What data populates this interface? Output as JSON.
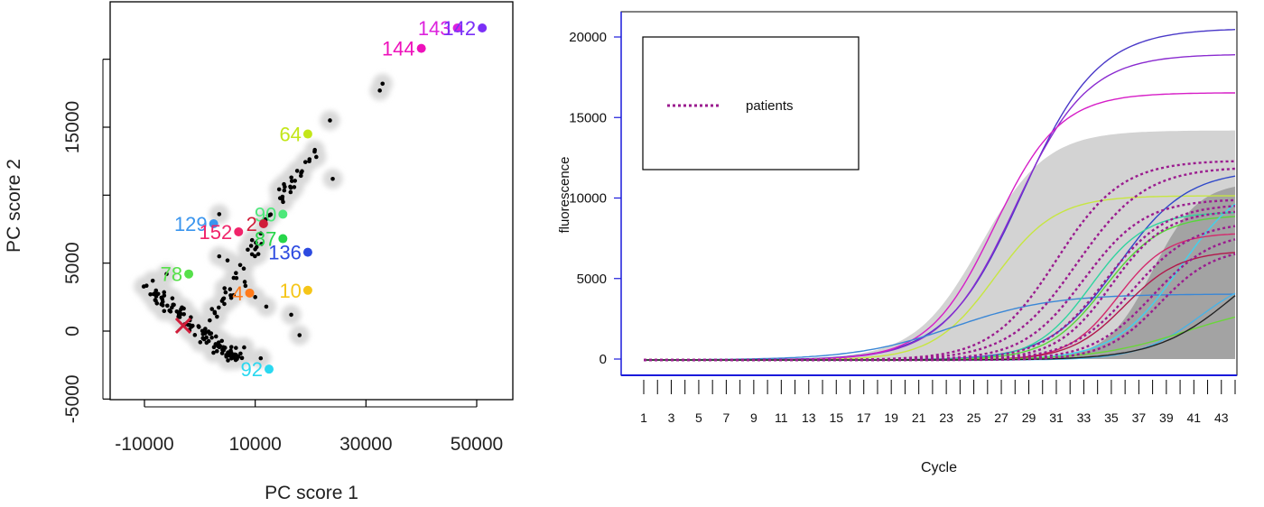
{
  "chart_data": [
    {
      "type": "scatter",
      "title": "",
      "xlabel": "PC score 1",
      "ylabel": "PC score 2",
      "xlim": [
        -16000,
        56000
      ],
      "ylim": [
        -5200,
        23500
      ],
      "xticks": [
        -10000,
        10000,
        30000,
        50000
      ],
      "xtick_labels": [
        "-10000",
        "10000",
        "30000",
        "50000"
      ],
      "yticks": [
        -5000,
        0,
        5000,
        10000,
        15000,
        20000
      ],
      "ytick_labels": [
        "-5000",
        "0",
        "5000",
        "",
        "15000",
        ""
      ],
      "grid": false,
      "density_region_color": "#d9d9d9",
      "point_color": "#000000",
      "labeled_points": [
        {
          "label": "143",
          "x": 46500,
          "y": 22300,
          "color": "#dd22dd"
        },
        {
          "label": "142",
          "x": 51000,
          "y": 22300,
          "color": "#7b2ff7"
        },
        {
          "label": "144",
          "x": 40000,
          "y": 20800,
          "color": "#ee11bb"
        },
        {
          "label": "64",
          "x": 19500,
          "y": 14500,
          "color": "#c3e619"
        },
        {
          "label": "90",
          "x": 15000,
          "y": 8600,
          "color": "#4de87a"
        },
        {
          "label": "2",
          "x": 11500,
          "y": 7900,
          "color": "#d01d3a"
        },
        {
          "label": "129",
          "x": 2500,
          "y": 7900,
          "color": "#3a95ee"
        },
        {
          "label": "152",
          "x": 7000,
          "y": 7300,
          "color": "#f0246a"
        },
        {
          "label": "87",
          "x": 15000,
          "y": 6800,
          "color": "#27d64a"
        },
        {
          "label": "136",
          "x": 19500,
          "y": 5800,
          "color": "#2c4ae0"
        },
        {
          "label": "78",
          "x": -2000,
          "y": 4200,
          "color": "#56e04a"
        },
        {
          "label": "4",
          "x": 9000,
          "y": 2800,
          "color": "#ff7a1a"
        },
        {
          "label": "10",
          "x": 19500,
          "y": 3000,
          "color": "#f5c518"
        },
        {
          "label": "92",
          "x": 12500,
          "y": -2800,
          "color": "#2ad8f0"
        }
      ],
      "center_marker": {
        "x": -3000,
        "y": 400,
        "color": "#d01d3a"
      }
    },
    {
      "type": "line",
      "title": "",
      "xlabel": "Cycle",
      "ylabel": "fluorescence",
      "xlim": [
        1,
        44
      ],
      "ylim": [
        -800,
        21000
      ],
      "xticks": [
        1,
        3,
        5,
        7,
        9,
        11,
        13,
        15,
        17,
        19,
        21,
        23,
        25,
        27,
        29,
        31,
        33,
        35,
        37,
        39,
        41,
        43
      ],
      "yticks": [
        0,
        5000,
        10000,
        15000,
        20000
      ],
      "ytick_labels": [
        "0",
        "5000",
        "10000",
        "15000",
        "20000"
      ],
      "grid": false,
      "legend": {
        "position": "top-left",
        "entries": [
          {
            "label": "patients",
            "color": "#9b1c8f",
            "style": "dotted"
          }
        ]
      },
      "envelope_colors": {
        "outer": "#d3d3d3",
        "inner": "#a3a3a3"
      },
      "reference_series": [
        {
          "max": 20600,
          "midpoint": 28.5,
          "slope": 0.36,
          "color": "#4a39c8"
        },
        {
          "max": 19000,
          "midpoint": 28.0,
          "slope": 0.38,
          "color": "#8a2bd0"
        },
        {
          "max": 16600,
          "midpoint": 26.5,
          "slope": 0.42,
          "color": "#d61ec7"
        },
        {
          "max": 10200,
          "midpoint": 26.5,
          "slope": 0.45,
          "color": "#c7e641"
        },
        {
          "max": 4100,
          "midpoint": 23.5,
          "slope": 0.28,
          "color": "#3a87d6"
        },
        {
          "max": 11800,
          "midpoint": 35.5,
          "slope": 0.4,
          "color": "#2f48c9"
        },
        {
          "max": 9200,
          "midpoint": 33.5,
          "slope": 0.5,
          "color": "#2fd4a0"
        },
        {
          "max": 9000,
          "midpoint": 34.5,
          "slope": 0.48,
          "color": "#57d63a"
        },
        {
          "max": 11500,
          "midpoint": 40.0,
          "slope": 0.42,
          "color": "#3ed2ee"
        },
        {
          "max": 7900,
          "midpoint": 35.5,
          "slope": 0.55,
          "color": "#d42a6d"
        },
        {
          "max": 6800,
          "midpoint": 36.0,
          "slope": 0.5,
          "color": "#b2174b"
        },
        {
          "max": 5500,
          "midpoint": 41.5,
          "slope": 0.45,
          "color": "#4ab3e6"
        },
        {
          "max": 3600,
          "midpoint": 40.5,
          "slope": 0.3,
          "color": "#6ad63a"
        },
        {
          "max": 8000,
          "midpoint": 44.0,
          "slope": 0.35,
          "color": "#222222"
        }
      ],
      "patient_series": [
        {
          "max": 12400,
          "midpoint": 31.0,
          "slope": 0.42
        },
        {
          "max": 12000,
          "midpoint": 32.5,
          "slope": 0.4
        },
        {
          "max": 10000,
          "midpoint": 33.0,
          "slope": 0.45
        },
        {
          "max": 9700,
          "midpoint": 34.5,
          "slope": 0.45
        },
        {
          "max": 9300,
          "midpoint": 35.0,
          "slope": 0.5
        },
        {
          "max": 8600,
          "midpoint": 36.5,
          "slope": 0.45
        },
        {
          "max": 8000,
          "midpoint": 38.0,
          "slope": 0.45
        },
        {
          "max": 7000,
          "midpoint": 38.5,
          "slope": 0.5
        }
      ]
    }
  ]
}
